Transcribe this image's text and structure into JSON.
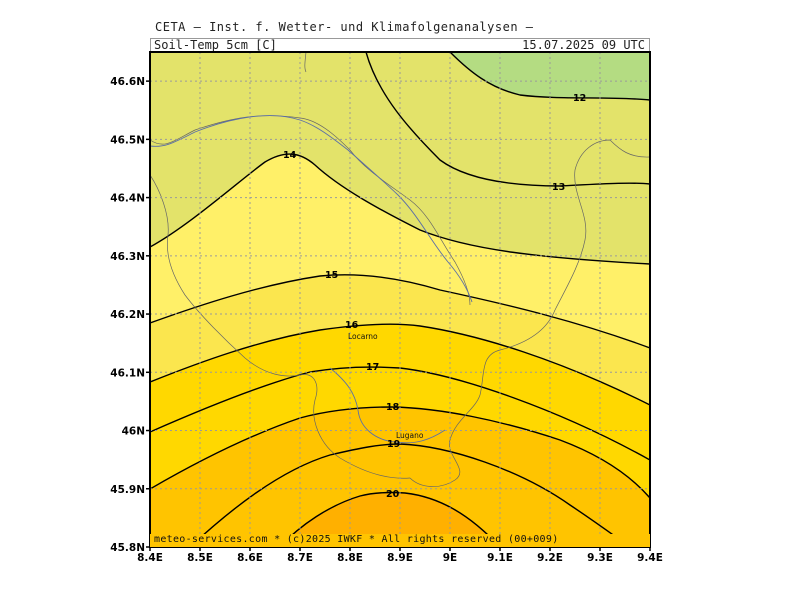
{
  "header": {
    "title": "CETA — Inst. f. Wetter- und Klimafolgenanalysen —",
    "variable": "Soil-Temp_5cm_[C]",
    "datetime": "15.07.2025 09 UTC"
  },
  "map": {
    "lon_range": [
      8.4,
      9.4
    ],
    "lat_range": [
      45.8,
      46.65
    ],
    "x_ticks": [
      "8.4E",
      "8.5E",
      "8.6E",
      "8.7E",
      "8.8E",
      "8.9E",
      "9E",
      "9.1E",
      "9.2E",
      "9.3E",
      "9.4E"
    ],
    "y_ticks": [
      "45.8N",
      "45.9N",
      "46N",
      "46.1N",
      "46.2N",
      "46.3N",
      "46.4N",
      "46.5N",
      "46.6N"
    ],
    "grid": "dotted",
    "contour_levels": [
      "12",
      "13",
      "14",
      "15",
      "16",
      "17",
      "18",
      "19",
      "20"
    ],
    "fill_colors": {
      "lt12": "#b4dc82",
      "12_14": "#e3e36a",
      "14_15": "#fff068",
      "15_16": "#fbe64e",
      "16_18": "#ffd800",
      "18_20": "#ffc400",
      "gt20": "#ffb000"
    },
    "cities": [
      {
        "name": "Locarno"
      },
      {
        "name": "Lugano"
      }
    ]
  },
  "footer": {
    "credit": "meteo-services.com * (c)2025 IWKF * All rights reserved (00+009)"
  }
}
